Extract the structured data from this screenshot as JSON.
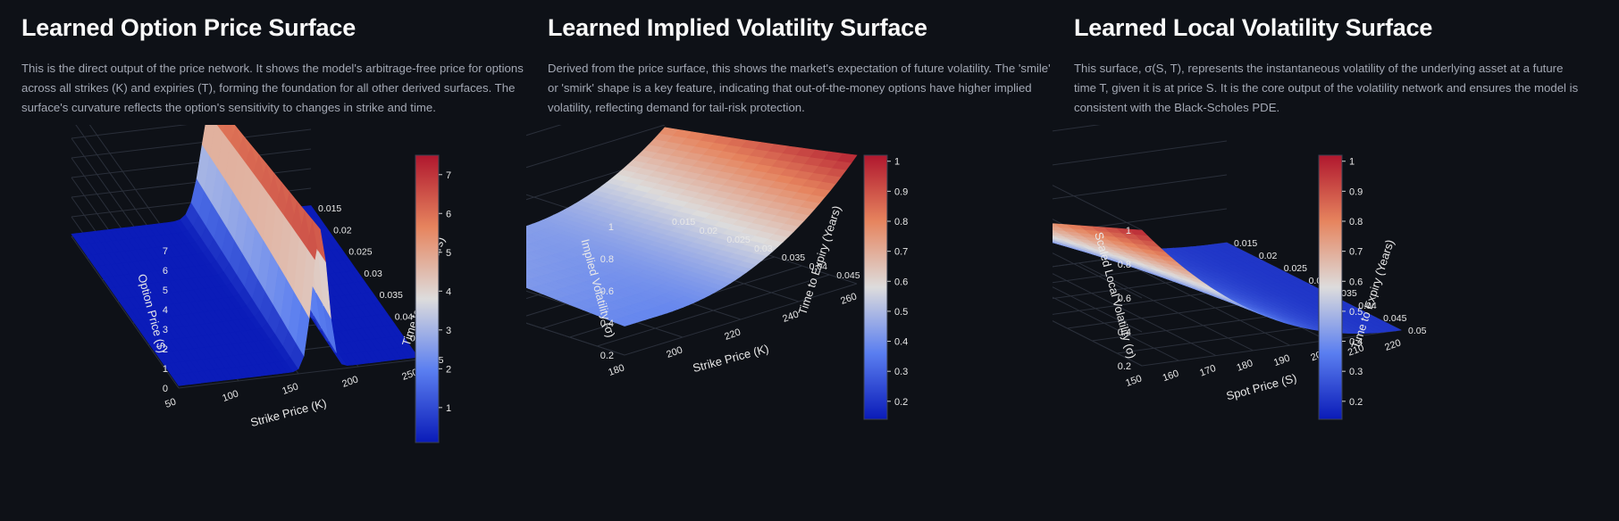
{
  "panels": [
    {
      "title": "Learned Option Price Surface",
      "description": "This is the direct output of the price network. It shows the model's arbitrage-free price for options across all strikes (K) and expiries (T), forming the foundation for all other derived surfaces. The surface's curvature reflects the option's sensitivity to changes in strike and time."
    },
    {
      "title": "Learned Implied Volatility Surface",
      "description": "Derived from the price surface, this shows the market's expectation of future volatility. The 'smile' or 'smirk' shape is a key feature, indicating that out-of-the-money options have higher implied volatility, reflecting demand for tail-risk protection."
    },
    {
      "title": "Learned Local Volatility Surface",
      "description": "This surface, σ(S, T), represents the instantaneous volatility of the underlying asset at a future time T, given it is at price S. It is the core output of the volatility network and ensures the model is consistent with the Black-Scholes PDE."
    }
  ],
  "chart_data": [
    {
      "type": "surface3d",
      "xlabel": "Strike Price (K)",
      "ylabel": "Time to Expiry (Years)",
      "zlabel": "Option Price ($)",
      "x_ticks": [
        "50",
        "100",
        "150",
        "200",
        "250"
      ],
      "y_ticks": [
        "0.015",
        "0.02",
        "0.025",
        "0.03",
        "0.035",
        "0.04",
        "0.045",
        "0.05"
      ],
      "z_ticks": [
        "0",
        "1",
        "2",
        "3",
        "4",
        "5",
        "6",
        "7"
      ],
      "colorbar": {
        "ticks": [
          "1",
          "2",
          "3",
          "4",
          "5",
          "6",
          "7"
        ],
        "range": [
          0.1,
          7.5
        ],
        "colorscale": [
          "#0a1bb8",
          "#5a7ef0",
          "#dddcdc",
          "#e6845e",
          "#b0172e"
        ]
      },
      "zlim": [
        0,
        7.5
      ],
      "shape": "peak near strike 175, value about 7.2 at short expiry, near 0 elsewhere"
    },
    {
      "type": "surface3d",
      "xlabel": "Strike Price (K)",
      "ylabel": "Time to Expiry (Years)",
      "zlabel": "Implied Volatility (σ)",
      "x_ticks": [
        "180",
        "200",
        "220",
        "240",
        "260"
      ],
      "y_ticks": [
        "0.015",
        "0.02",
        "0.025",
        "0.03",
        "0.035",
        "0.04",
        "0.045",
        "0.05"
      ],
      "z_ticks": [
        "0.2",
        "0.4",
        "0.6",
        "0.8",
        "1"
      ],
      "colorbar": {
        "ticks": [
          "0.2",
          "0.3",
          "0.4",
          "0.5",
          "0.6",
          "0.7",
          "0.8",
          "0.9",
          "1"
        ],
        "range": [
          0.14,
          1.02
        ],
        "colorscale": [
          "#0a1bb8",
          "#5a7ef0",
          "#dddcdc",
          "#e6845e",
          "#b0172e"
        ]
      },
      "zlim": [
        0.2,
        1.02
      ],
      "shape": "smile; minimum about 0.4 near strike 220, rising to about 1 at strike 270"
    },
    {
      "type": "surface3d",
      "xlabel": "Spot Price (S)",
      "ylabel": "Time to Expiry (Years)",
      "zlabel": "Scaled Local Volatility (σ)",
      "x_ticks": [
        "150",
        "160",
        "170",
        "180",
        "190",
        "200",
        "210",
        "220"
      ],
      "y_ticks": [
        "0.015",
        "0.02",
        "0.025",
        "0.03",
        "0.035",
        "0.04",
        "0.045",
        "0.05"
      ],
      "z_ticks": [
        "0.2",
        "0.4",
        "0.6",
        "0.8",
        "1"
      ],
      "colorbar": {
        "ticks": [
          "0.2",
          "0.3",
          "0.4",
          "0.5",
          "0.6",
          "0.7",
          "0.8",
          "0.9",
          "1"
        ],
        "range": [
          0.14,
          1.02
        ],
        "colorscale": [
          "#0a1bb8",
          "#5a7ef0",
          "#dddcdc",
          "#e6845e",
          "#b0172e"
        ]
      },
      "zlim": [
        0.2,
        1.02
      ],
      "shape": "decreasing in spot price; about 1 at low spot short expiry, about 0.2 at spot 220"
    }
  ]
}
